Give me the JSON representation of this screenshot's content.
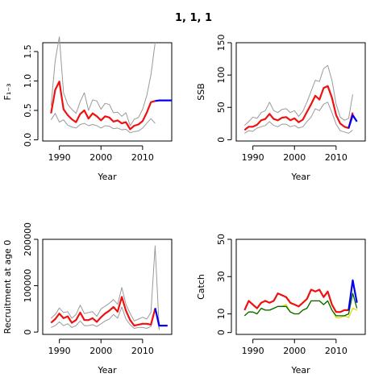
{
  "page_title": "1, 1, 1",
  "chart_data": [
    {
      "type": "line",
      "ylabel": "F₁₋₃",
      "xlabel": "Year",
      "xlim": [
        1986,
        2017
      ],
      "ylim": [
        -0.02,
        1.65
      ],
      "xticks": [
        1990,
        2000,
        2010
      ],
      "yticks": [
        0.0,
        0.5,
        1.0,
        1.5
      ],
      "series": [
        {
          "color": "#9a9a9a",
          "width": 1,
          "x": [
            1988,
            1989,
            1990,
            1991,
            1992,
            1993,
            1994,
            1995,
            1996,
            1997,
            1998,
            1999,
            2000,
            2001,
            2002,
            2003,
            2004,
            2005,
            2006,
            2007,
            2008,
            2009,
            2010,
            2011,
            2012,
            2013
          ],
          "values": [
            0.58,
            1.35,
            1.75,
            0.8,
            0.6,
            0.52,
            0.45,
            0.65,
            0.8,
            0.5,
            0.68,
            0.66,
            0.52,
            0.62,
            0.6,
            0.46,
            0.47,
            0.4,
            0.46,
            0.24,
            0.35,
            0.38,
            0.52,
            0.75,
            1.1,
            1.65
          ]
        },
        {
          "color": "#9a9a9a",
          "width": 1,
          "x": [
            1988,
            1989,
            1990,
            1991,
            1992,
            1993,
            1994,
            1995,
            1996,
            1997,
            1998,
            1999,
            2000,
            2001,
            2002,
            2003,
            2004,
            2005,
            2006,
            2007,
            2008,
            2009,
            2010,
            2011,
            2012,
            2013
          ],
          "values": [
            0.34,
            0.45,
            0.3,
            0.34,
            0.25,
            0.22,
            0.2,
            0.26,
            0.28,
            0.24,
            0.26,
            0.24,
            0.2,
            0.24,
            0.23,
            0.19,
            0.2,
            0.17,
            0.18,
            0.12,
            0.14,
            0.15,
            0.2,
            0.28,
            0.36,
            0.28
          ]
        },
        {
          "color": "#ee1111",
          "width": 2.2,
          "x": [
            1988,
            1989,
            1990,
            1991,
            1992,
            1993,
            1994,
            1995,
            1996,
            1997,
            1998,
            1999,
            2000,
            2001,
            2002,
            2003,
            2004,
            2005,
            2006,
            2007,
            2008,
            2009,
            2010,
            2011,
            2012,
            2013
          ],
          "values": [
            0.45,
            0.85,
            0.99,
            0.52,
            0.42,
            0.35,
            0.3,
            0.44,
            0.5,
            0.36,
            0.45,
            0.4,
            0.33,
            0.4,
            0.38,
            0.31,
            0.33,
            0.28,
            0.3,
            0.18,
            0.24,
            0.26,
            0.32,
            0.46,
            0.64,
            0.66
          ]
        },
        {
          "color": "#0000ee",
          "width": 2.2,
          "x": [
            2013,
            2014,
            2015,
            2016,
            2017
          ],
          "values": [
            0.66,
            0.67,
            0.67,
            0.67,
            0.67
          ]
        }
      ]
    },
    {
      "type": "line",
      "ylabel": "SSB",
      "xlabel": "Year",
      "xlim": [
        1986,
        2017
      ],
      "ylim": [
        -2,
        150
      ],
      "xticks": [
        1990,
        2000,
        2010
      ],
      "yticks": [
        0,
        50,
        100,
        150
      ],
      "series": [
        {
          "color": "#9a9a9a",
          "width": 1,
          "x": [
            1988,
            1989,
            1990,
            1991,
            1992,
            1993,
            1994,
            1995,
            1996,
            1997,
            1998,
            1999,
            2000,
            2001,
            2002,
            2003,
            2004,
            2005,
            2006,
            2007,
            2008,
            2009,
            2010,
            2011,
            2012,
            2013,
            2014
          ],
          "values": [
            22,
            28,
            35,
            33,
            42,
            45,
            58,
            45,
            42,
            47,
            48,
            42,
            45,
            36,
            44,
            58,
            75,
            92,
            90,
            110,
            115,
            92,
            55,
            35,
            30,
            33,
            70
          ]
        },
        {
          "color": "#9a9a9a",
          "width": 1,
          "x": [
            1988,
            1989,
            1990,
            1991,
            1992,
            1993,
            1994,
            1995,
            1996,
            1997,
            1998,
            1999,
            2000,
            2001,
            2002,
            2003,
            2004,
            2005,
            2006,
            2007,
            2008,
            2009,
            2010,
            2011,
            2012,
            2013,
            2014
          ],
          "values": [
            10,
            14,
            13,
            18,
            20,
            22,
            28,
            22,
            20,
            24,
            24,
            20,
            22,
            18,
            20,
            28,
            35,
            48,
            45,
            55,
            58,
            42,
            24,
            14,
            12,
            10,
            15
          ]
        },
        {
          "color": "#ee1111",
          "width": 2.2,
          "x": [
            1988,
            1989,
            1990,
            1991,
            1992,
            1993,
            1994,
            1995,
            1996,
            1997,
            1998,
            1999,
            2000,
            2001,
            2002,
            2003,
            2004,
            2005,
            2006,
            2007,
            2008,
            2009,
            2010,
            2011,
            2012,
            2013,
            2014
          ],
          "values": [
            15,
            20,
            20,
            23,
            30,
            32,
            40,
            32,
            30,
            34,
            35,
            30,
            33,
            27,
            31,
            43,
            55,
            68,
            62,
            80,
            83,
            65,
            38,
            25,
            20,
            18,
            42
          ]
        },
        {
          "color": "#0000ee",
          "width": 2.2,
          "x": [
            2013,
            2014,
            2015
          ],
          "values": [
            18,
            38,
            28
          ]
        }
      ]
    },
    {
      "type": "line",
      "ylabel": "Recruitment at age 0",
      "xlabel": "Year",
      "xlim": [
        1986,
        2017
      ],
      "ylim": [
        -5000,
        200000
      ],
      "xticks": [
        1990,
        2000,
        2010
      ],
      "yticks": [
        0,
        100000,
        200000
      ],
      "series": [
        {
          "color": "#9a9a9a",
          "width": 1,
          "x": [
            1988,
            1989,
            1990,
            1991,
            1992,
            1993,
            1994,
            1995,
            1996,
            1997,
            1998,
            1999,
            2000,
            2001,
            2002,
            2003,
            2004,
            2005,
            2006,
            2007,
            2008,
            2009,
            2010,
            2011,
            2012,
            2013,
            2014
          ],
          "values": [
            30000,
            38000,
            52000,
            42000,
            44000,
            30000,
            38000,
            58000,
            40000,
            42000,
            44000,
            34000,
            50000,
            56000,
            62000,
            70000,
            60000,
            96000,
            60000,
            40000,
            24000,
            28000,
            32000,
            28000,
            42000,
            186000,
            5000
          ]
        },
        {
          "color": "#9a9a9a",
          "width": 1,
          "x": [
            1988,
            1989,
            1990,
            1991,
            1992,
            1993,
            1994,
            1995,
            1996,
            1997,
            1998,
            1999,
            2000,
            2001,
            2002,
            2003,
            2004,
            2005,
            2006,
            2007,
            2008,
            2009,
            2010,
            2011,
            2012,
            2013,
            2014
          ],
          "values": [
            10000,
            14000,
            22000,
            14000,
            18000,
            10000,
            14000,
            24000,
            14000,
            14000,
            16000,
            12000,
            18000,
            24000,
            28000,
            38000,
            30000,
            54000,
            28000,
            16000,
            8000,
            10000,
            10000,
            8000,
            12000,
            50000,
            5000
          ]
        },
        {
          "color": "#ee1111",
          "width": 2.2,
          "x": [
            1988,
            1989,
            1990,
            1991,
            1992,
            1993,
            1994,
            1995,
            1996,
            1997,
            1998,
            1999,
            2000,
            2001,
            2002,
            2003,
            2004,
            2005,
            2006,
            2007,
            2008,
            2009,
            2010,
            2011,
            2012,
            2013
          ],
          "values": [
            20000,
            28000,
            40000,
            30000,
            34000,
            20000,
            26000,
            42000,
            26000,
            26000,
            30000,
            22000,
            32000,
            40000,
            46000,
            54000,
            44000,
            76000,
            46000,
            26000,
            14000,
            16000,
            18000,
            18000,
            16000,
            50000
          ]
        },
        {
          "color": "#0000ee",
          "width": 2.2,
          "x": [
            2013,
            2014,
            2015,
            2016
          ],
          "values": [
            52000,
            14000,
            14000,
            14000
          ]
        }
      ]
    },
    {
      "type": "line",
      "ylabel": "Catch",
      "xlabel": "Year",
      "xlim": [
        1986,
        2017
      ],
      "ylim": [
        -1,
        50
      ],
      "xticks": [
        1990,
        2000,
        2010
      ],
      "yticks": [
        0,
        10,
        30,
        50
      ],
      "series": [
        {
          "color": "#dddd00",
          "width": 1.3,
          "x": [
            1988,
            1989,
            1990,
            1991,
            1992,
            1993,
            1994,
            1995,
            1996,
            1997,
            1998,
            1999,
            2000,
            2001,
            2002,
            2003,
            2004,
            2005,
            2006,
            2007,
            2008,
            2009,
            2010,
            2011,
            2012,
            2013,
            2014,
            2015
          ],
          "values": [
            9,
            11,
            11,
            10,
            13,
            12,
            12,
            13,
            14,
            14,
            15,
            11,
            10,
            10,
            12,
            13,
            17,
            17,
            17,
            15,
            17,
            12,
            8,
            8,
            9,
            8,
            13,
            12
          ]
        },
        {
          "color": "#006600",
          "width": 1.3,
          "x": [
            1988,
            1989,
            1990,
            1991,
            1992,
            1993,
            1994,
            1995,
            1996,
            1997,
            1998,
            1999,
            2000,
            2001,
            2002,
            2003,
            2004,
            2005,
            2006,
            2007,
            2008,
            2009,
            2010,
            2011,
            2012,
            2013,
            2014,
            2015
          ],
          "values": [
            9,
            11,
            11,
            10,
            13,
            12,
            12,
            13,
            14,
            14,
            14,
            11,
            10,
            10,
            12,
            13,
            17,
            17,
            17,
            15,
            17,
            12,
            9,
            9,
            9,
            10,
            21,
            13
          ]
        },
        {
          "color": "#ee1111",
          "width": 2.2,
          "x": [
            1988,
            1989,
            1990,
            1991,
            1992,
            1993,
            1994,
            1995,
            1996,
            1997,
            1998,
            1999,
            2000,
            2001,
            2002,
            2003,
            2004,
            2005,
            2006,
            2007,
            2008,
            2009,
            2010,
            2011,
            2012,
            2013
          ],
          "values": [
            12,
            17,
            15,
            13,
            16,
            17,
            16,
            17,
            21,
            20,
            19,
            16,
            15,
            14,
            16,
            18,
            23,
            22,
            23,
            19,
            22,
            15,
            11,
            11,
            12,
            12
          ]
        },
        {
          "color": "#0000ee",
          "width": 2.2,
          "x": [
            2013,
            2014,
            2015
          ],
          "values": [
            12,
            28,
            16
          ]
        }
      ]
    }
  ]
}
